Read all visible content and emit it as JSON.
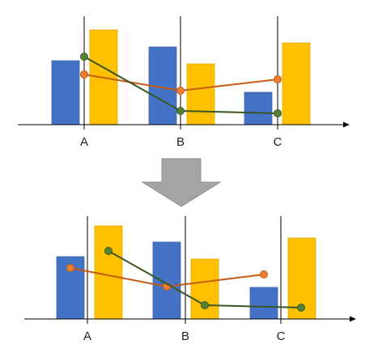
{
  "colors": {
    "bar_series_1": "#4472C4",
    "bar_series_2": "#FFC000",
    "line_orange": "#ED7D31",
    "line_green": "#548235",
    "line_green_marker": "#548235",
    "arrow": "#A5A5A5",
    "axis": "#000000"
  },
  "categories": [
    "A",
    "B",
    "C"
  ],
  "panels": [
    {
      "id": "top",
      "category_labels": [
        "A",
        "B",
        "C"
      ]
    },
    {
      "id": "bottom",
      "category_labels": [
        "A",
        "B",
        "C"
      ]
    }
  ],
  "arrow_icon": "down-arrow-icon",
  "chart_data": [
    {
      "type": "bar",
      "categories": [
        "A",
        "B",
        "C"
      ],
      "series": [
        {
          "values": [
            79,
            96,
            40
          ]
        },
        {
          "values": [
            117,
            75,
            101
          ]
        }
      ],
      "lines": [
        {
          "values": [
            62,
            42,
            56
          ]
        },
        {
          "values": [
            84,
            17,
            14
          ]
        }
      ]
    },
    {
      "type": "bar",
      "categories": [
        "A",
        "B",
        "C"
      ],
      "series": [
        {
          "values": [
            77,
            95,
            39
          ]
        },
        {
          "values": [
            115,
            74,
            100
          ]
        }
      ],
      "lines": [
        {
          "values": [
            63,
            40,
            55
          ]
        },
        {
          "values": [
            84,
            17,
            14
          ]
        }
      ]
    }
  ]
}
